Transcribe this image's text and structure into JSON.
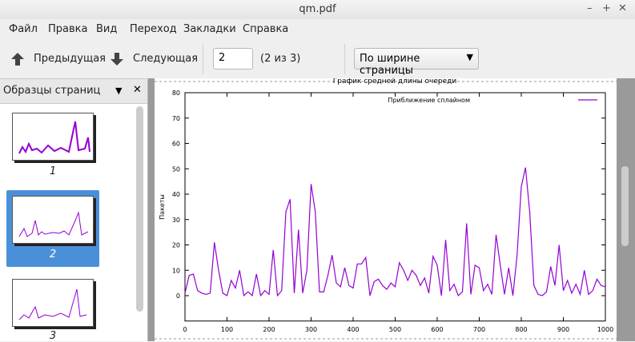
{
  "window": {
    "title": "qm.pdf"
  },
  "menu": [
    "Файл",
    "Правка",
    "Вид",
    "Переход",
    "Закладки",
    "Справка"
  ],
  "toolbar": {
    "prev": "Предыдущая",
    "next": "Следующая",
    "page_input": "2",
    "page_count": "(2 из 3)",
    "zoom": "По ширине страницы"
  },
  "sidebar": {
    "title": "Образцы страниц",
    "thumbnails": [
      "1",
      "2",
      "3"
    ]
  },
  "chart_data": {
    "type": "line",
    "title": "График средней длины очереди",
    "ylabel": "Пакеты",
    "x": [
      0,
      10,
      20,
      30,
      40,
      50,
      60,
      70,
      80,
      90,
      100,
      110,
      120,
      130,
      140,
      150,
      160,
      170,
      180,
      190,
      200,
      210,
      220,
      230,
      240,
      250,
      260,
      270,
      280,
      290,
      300,
      310,
      320,
      330,
      340,
      350,
      360,
      370,
      380,
      390,
      400,
      410,
      420,
      430,
      440,
      450,
      460,
      470,
      480,
      490,
      500,
      510,
      520,
      530,
      540,
      550,
      560,
      570,
      580,
      590,
      600,
      610,
      620,
      630,
      640,
      650,
      660,
      670,
      680,
      690,
      700,
      710,
      720,
      730,
      740,
      750,
      760,
      770,
      780,
      790,
      800,
      810,
      820,
      830,
      840,
      850,
      860,
      870,
      880,
      890,
      900,
      910,
      920,
      930,
      940,
      950,
      960,
      970,
      980,
      990,
      1000
    ],
    "series": [
      {
        "name": "Приближение сплайном",
        "color": "#9400d3",
        "values": [
          1,
          8,
          8.5,
          2,
          1,
          0.5,
          1,
          21,
          10,
          1,
          0,
          6,
          3,
          10,
          0,
          1.5,
          0,
          8.5,
          0,
          2,
          0.5,
          18,
          0,
          2,
          33,
          38,
          1,
          26,
          1,
          10,
          44,
          33,
          1.5,
          1.5,
          8,
          16,
          5,
          3.5,
          11,
          4,
          3,
          12.5,
          12.5,
          15,
          0,
          5.5,
          6.5,
          4,
          2.5,
          5,
          3.5,
          13,
          10,
          6,
          10,
          8,
          4,
          7,
          1,
          15.5,
          12,
          0,
          22,
          2,
          4.5,
          0,
          1.5,
          28.5,
          0.5,
          12,
          11,
          2,
          4.5,
          0.5,
          24,
          12,
          0.5,
          11,
          0,
          16,
          43,
          50.5,
          33,
          4,
          0.5,
          0,
          1.5,
          11.5,
          4,
          20,
          2,
          6,
          1,
          4.5,
          0.5,
          10,
          0.5,
          2,
          6.5,
          4,
          3.5
        ]
      }
    ],
    "xlim": [
      0,
      1000
    ],
    "ylim": [
      -10,
      80
    ],
    "xticks": [
      0,
      100,
      200,
      300,
      400,
      500,
      600,
      700,
      800,
      900,
      1000
    ],
    "yticks": [
      0,
      10,
      20,
      30,
      40,
      50,
      60,
      70,
      80
    ],
    "grid": false
  }
}
